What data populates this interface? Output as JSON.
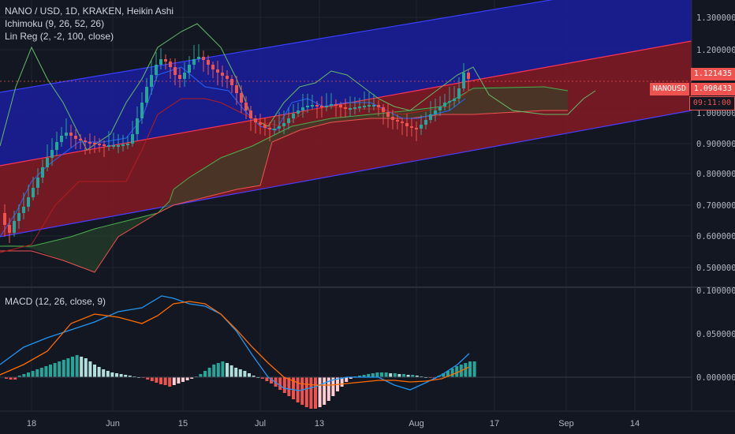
{
  "legend": {
    "title": "NANO / USD, 1D, KRAKEN, Heikin Ashi",
    "ichimoku": "Ichimoku (9, 26, 52, 26)",
    "linreg": "Lin Reg (2, -2, 100, close)",
    "macd": "MACD (12, 26, close, 9)"
  },
  "price_axis": [
    "1.300000",
    "1.200000",
    "1.000000",
    "0.900000",
    "0.800000",
    "0.700000",
    "0.600000",
    "0.500000"
  ],
  "tags": {
    "ichimoku_level": "1.121435",
    "symbol": "NANOUSD",
    "last_price": "1.098433",
    "countdown": "09:11:00"
  },
  "macd_axis": [
    "0.100000",
    "0.050000",
    "0.000000"
  ],
  "date_axis": [
    "18",
    "Jun",
    "15",
    "Jul",
    "13",
    "Aug",
    "17",
    "Sep",
    "14"
  ],
  "colors": {
    "background": "#131722",
    "up": "#26a69a",
    "down": "#ef5350",
    "regression_upper": "#1a1e9e",
    "regression_lower": "#8b1a24",
    "macd_line": "#2196f3",
    "signal_line": "#ff6d00"
  },
  "chart_data": [
    {
      "type": "candlestick",
      "title": "NANO / USD, 1D, KRAKEN, Heikin Ashi",
      "ylim": [
        0.45,
        1.35
      ],
      "x_ticks": [
        "18",
        "Jun",
        "15",
        "Jul",
        "13",
        "Aug",
        "17",
        "Sep",
        "14"
      ],
      "last_price": 1.098433
    },
    {
      "type": "bar",
      "title": "MACD (12, 26, close, 9)",
      "ylim": [
        -0.03,
        0.1
      ],
      "series": [
        {
          "name": "MACD",
          "values": []
        },
        {
          "name": "Signal",
          "values": []
        }
      ]
    }
  ]
}
